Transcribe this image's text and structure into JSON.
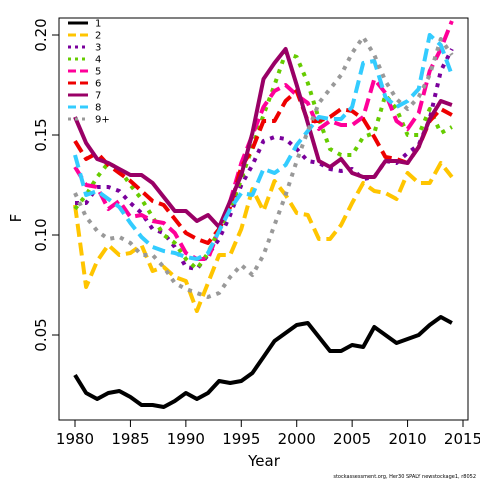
{
  "chart_data": {
    "type": "line",
    "title": "",
    "xlabel": "Year",
    "ylabel": "F",
    "xlim": [
      1980,
      2015
    ],
    "ylim": [
      0,
      0.2
    ],
    "x_ticks": [
      1980,
      1985,
      1990,
      1995,
      2000,
      2005,
      2010,
      2015
    ],
    "y_ticks": [
      0.05,
      0.1,
      0.15,
      0.2
    ],
    "x_tick_labels": [
      "1980",
      "1985",
      "1990",
      "1995",
      "2000",
      "2005",
      "2010",
      "2015"
    ],
    "y_tick_labels": [
      "0.05",
      "0.10",
      "0.15",
      "0.20"
    ],
    "grid": false,
    "legend_position": "top-left",
    "credit": "stockassessment.org, Her30 SPALY newstockage1, r8052",
    "x": [
      1980,
      1981,
      1982,
      1983,
      1984,
      1985,
      1986,
      1987,
      1988,
      1989,
      1990,
      1991,
      1992,
      1993,
      1994,
      1995,
      1996,
      1997,
      1998,
      1999,
      2000,
      2001,
      2002,
      2003,
      2004,
      2005,
      2006,
      2007,
      2008,
      2009,
      2010,
      2011,
      2012,
      2013,
      2014
    ],
    "series": [
      {
        "name": "1",
        "color": "#000000",
        "dash": "solid",
        "values": [
          0.03,
          0.021,
          0.018,
          0.021,
          0.022,
          0.019,
          0.015,
          0.015,
          0.014,
          0.017,
          0.021,
          0.018,
          0.021,
          0.027,
          0.026,
          0.027,
          0.031,
          0.039,
          0.047,
          0.051,
          0.055,
          0.056,
          0.049,
          0.042,
          0.042,
          0.045,
          0.044,
          0.054,
          0.05,
          0.046,
          0.048,
          0.05,
          0.055,
          0.059,
          0.056
        ]
      },
      {
        "name": "2",
        "color": "#FFC500",
        "dash": "dashed",
        "values": [
          0.115,
          0.074,
          0.087,
          0.095,
          0.09,
          0.091,
          0.095,
          0.082,
          0.084,
          0.079,
          0.077,
          0.062,
          0.076,
          0.09,
          0.09,
          0.103,
          0.123,
          0.112,
          0.127,
          0.12,
          0.111,
          0.11,
          0.098,
          0.098,
          0.105,
          0.116,
          0.126,
          0.122,
          0.121,
          0.118,
          0.131,
          0.126,
          0.126,
          0.136,
          0.129
        ]
      },
      {
        "name": "3",
        "color": "#7A009C",
        "dash": "dotted",
        "values": [
          0.116,
          0.116,
          0.124,
          0.124,
          0.122,
          0.116,
          0.111,
          0.103,
          0.101,
          0.094,
          0.084,
          0.083,
          0.09,
          0.098,
          0.11,
          0.125,
          0.135,
          0.147,
          0.149,
          0.148,
          0.143,
          0.137,
          0.136,
          0.133,
          0.132,
          0.133,
          0.128,
          0.129,
          0.137,
          0.136,
          0.141,
          0.145,
          0.158,
          0.182,
          0.193
        ]
      },
      {
        "name": "4",
        "color": "#66CC00",
        "dash": "dotted",
        "values": [
          0.113,
          0.12,
          0.129,
          0.136,
          0.133,
          0.125,
          0.118,
          0.109,
          0.1,
          0.096,
          0.088,
          0.083,
          0.091,
          0.103,
          0.113,
          0.128,
          0.144,
          0.16,
          0.175,
          0.191,
          0.189,
          0.176,
          0.158,
          0.143,
          0.14,
          0.14,
          0.149,
          0.151,
          0.17,
          0.163,
          0.15,
          0.15,
          0.163,
          0.151,
          0.154
        ]
      },
      {
        "name": "5",
        "color": "#FF0099",
        "dash": "dashed",
        "values": [
          0.134,
          0.125,
          0.124,
          0.113,
          0.117,
          0.109,
          0.11,
          0.107,
          0.106,
          0.101,
          0.091,
          0.088,
          0.088,
          0.103,
          0.117,
          0.136,
          0.15,
          0.164,
          0.172,
          0.175,
          0.17,
          0.166,
          0.153,
          0.157,
          0.155,
          0.155,
          0.159,
          0.178,
          0.171,
          0.157,
          0.153,
          0.161,
          0.182,
          0.193,
          0.207
        ]
      },
      {
        "name": "6",
        "color": "#EE0000",
        "dash": "dashed",
        "values": [
          0.147,
          0.138,
          0.141,
          0.135,
          0.131,
          0.127,
          0.122,
          0.117,
          0.115,
          0.108,
          0.101,
          0.098,
          0.096,
          0.103,
          0.114,
          0.134,
          0.143,
          0.157,
          0.157,
          0.167,
          0.172,
          0.157,
          0.157,
          0.159,
          0.163,
          0.162,
          0.158,
          0.149,
          0.139,
          0.138,
          0.136,
          0.144,
          0.157,
          0.163,
          0.16
        ]
      },
      {
        "name": "7",
        "color": "#990066",
        "dash": "solid",
        "values": [
          0.159,
          0.146,
          0.138,
          0.136,
          0.133,
          0.13,
          0.13,
          0.126,
          0.119,
          0.112,
          0.112,
          0.107,
          0.11,
          0.104,
          0.117,
          0.13,
          0.151,
          0.178,
          0.186,
          0.193,
          0.175,
          0.156,
          0.137,
          0.134,
          0.138,
          0.131,
          0.129,
          0.129,
          0.137,
          0.137,
          0.136,
          0.144,
          0.158,
          0.167,
          0.165
        ]
      },
      {
        "name": "8",
        "color": "#33CCFF",
        "dash": "dashed",
        "values": [
          0.14,
          0.12,
          0.122,
          0.118,
          0.114,
          0.106,
          0.099,
          0.094,
          0.092,
          0.091,
          0.089,
          0.088,
          0.091,
          0.102,
          0.113,
          0.121,
          0.12,
          0.133,
          0.131,
          0.135,
          0.145,
          0.152,
          0.159,
          0.158,
          0.158,
          0.164,
          0.186,
          0.187,
          0.169,
          0.164,
          0.167,
          0.173,
          0.2,
          0.195,
          0.18
        ]
      },
      {
        "name": "9+",
        "color": "#999999",
        "dash": "dotted",
        "values": [
          0.121,
          0.109,
          0.102,
          0.098,
          0.099,
          0.096,
          0.09,
          0.09,
          0.084,
          0.076,
          0.073,
          0.071,
          0.069,
          0.071,
          0.079,
          0.085,
          0.08,
          0.09,
          0.105,
          0.12,
          0.137,
          0.152,
          0.166,
          0.173,
          0.18,
          0.191,
          0.199,
          0.19,
          0.177,
          0.168,
          0.163,
          0.169,
          0.18,
          0.198,
          0.19
        ]
      }
    ]
  }
}
